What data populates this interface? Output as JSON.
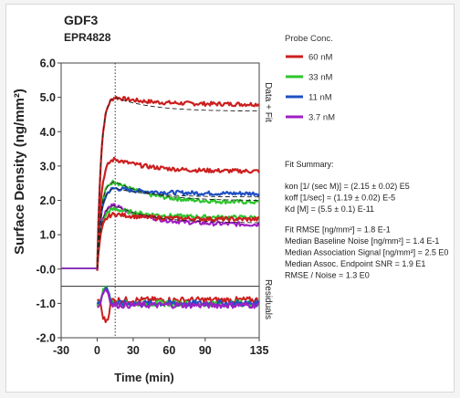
{
  "chart_data": {
    "type": "line",
    "title": "GDF3",
    "subtitle": "EPR4828",
    "xlabel": "Time (min)",
    "ylabel": "Surface Density (ng/mm²)",
    "xlim": [
      -30,
      135
    ],
    "ylim": [
      -2.0,
      6.0
    ],
    "x_ticks": [
      "-30",
      "0",
      "30",
      "60",
      "90",
      "135"
    ],
    "y_ticks": [
      "6.0",
      "5.0",
      "4.0",
      "3.0",
      "2.0",
      "1.0",
      "-0.0",
      "-1.0",
      "-2.0"
    ],
    "panel_labels": {
      "top": "Data + Fit",
      "bottom": "Residuals"
    },
    "injection_end_x": 15,
    "legend_title": "Probe Conc.",
    "series": [
      {
        "name": "60 nM",
        "color": "#cc1f1f",
        "baseline": 0.0,
        "plateau": 5.0,
        "end": 4.8,
        "fit_end": 4.6,
        "residual_offset": -0.9
      },
      {
        "name": "33 nM",
        "color": "#2ec42e",
        "baseline": 0.0,
        "plateau": 2.55,
        "end": 1.95,
        "fit_end": 2.0,
        "residual_offset": -1.0
      },
      {
        "name": "11 nM",
        "color": "#1f4fc4",
        "baseline": 0.0,
        "plateau": 2.35,
        "end": 2.2,
        "fit_end": 2.1,
        "residual_offset": -1.0
      },
      {
        "name": "3.7 nM",
        "color": "#a01fc4",
        "baseline": 0.0,
        "plateau": 1.85,
        "end": 1.3,
        "fit_end": 1.35,
        "residual_offset": -1.05
      }
    ],
    "extra_series_note": "",
    "extra_series": [
      {
        "color": "#cc1f1f",
        "plateau": 3.2,
        "end": 2.85
      },
      {
        "color": "#2ec42e",
        "plateau": 1.75,
        "end": 1.5
      },
      {
        "color": "#cc1f1f",
        "plateau": 1.6,
        "end": 1.45
      }
    ],
    "fit_summary": {
      "heading": "Fit Summary:",
      "lines": [
        "kon  [1/ (sec M)]  =  (2.15 ± 0.02) E5",
        "koff  [1/sec]  =  (1.19 ± 0.02) E-5",
        "Kd  [M]  =  (5.5 ± 0.1) E-11",
        "",
        "Fit RMSE [ng/mm²]  =  1.8 E-1",
        "Median Baseline Noise [ng/mm²]  =  1.4 E-1",
        "Median Association Signal [ng/mm²]  =  2.5 E0",
        "Median Assoc. Endpoint SNR  =  1.9 E1",
        "RMSE / Noise  =  1.3 E0"
      ]
    }
  }
}
